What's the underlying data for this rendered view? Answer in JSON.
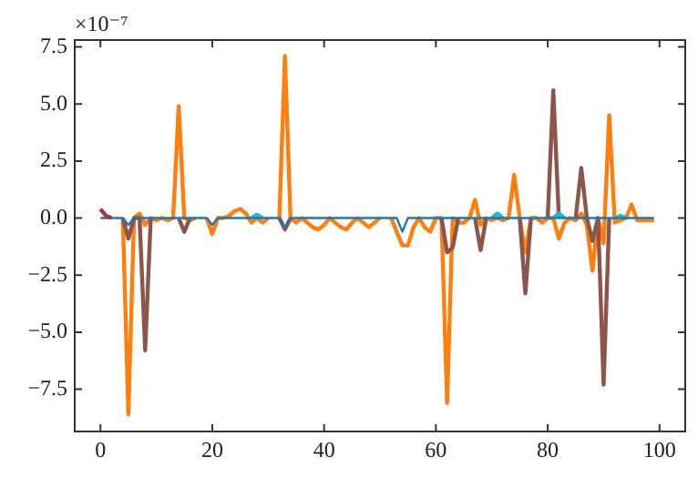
{
  "chart_data": {
    "type": "line",
    "annotations": [
      "×10⁻⁷"
    ],
    "x": [
      0,
      1,
      2,
      3,
      4,
      5,
      6,
      7,
      8,
      9,
      10,
      11,
      12,
      13,
      14,
      15,
      16,
      17,
      18,
      19,
      20,
      21,
      22,
      23,
      24,
      25,
      26,
      27,
      28,
      29,
      30,
      31,
      32,
      33,
      34,
      35,
      36,
      37,
      38,
      39,
      40,
      41,
      42,
      43,
      44,
      45,
      46,
      47,
      48,
      49,
      50,
      51,
      52,
      53,
      54,
      55,
      56,
      57,
      58,
      59,
      60,
      61,
      62,
      63,
      64,
      65,
      66,
      67,
      68,
      69,
      70,
      71,
      72,
      73,
      74,
      75,
      76,
      77,
      78,
      79,
      80,
      81,
      82,
      83,
      84,
      85,
      86,
      87,
      88,
      89,
      90,
      91,
      92,
      93,
      94,
      95,
      96,
      97,
      98,
      99
    ],
    "series": [
      {
        "color": "#1f77b4",
        "values": [
          0,
          0,
          0,
          0,
          0,
          -0.3,
          0,
          0,
          0,
          0,
          0,
          0,
          0,
          0,
          0,
          0,
          0,
          0,
          0,
          0,
          -0.3,
          0,
          0,
          0,
          0,
          0,
          0,
          0,
          0,
          0,
          0,
          0,
          0,
          -0.4,
          0,
          0,
          0,
          0,
          0,
          0,
          0,
          0,
          0,
          0,
          0,
          0,
          0,
          0,
          0,
          0,
          0,
          0,
          0,
          0,
          -0.6,
          0,
          0,
          0,
          0,
          0,
          0,
          0,
          0,
          0,
          0,
          0,
          0,
          0,
          0,
          0,
          0,
          0,
          0,
          0,
          0,
          0,
          0,
          0,
          0,
          0,
          0,
          0,
          0,
          0,
          0,
          0,
          0,
          0,
          0,
          0,
          0,
          0,
          0,
          0,
          0,
          0,
          0,
          0,
          0,
          0
        ]
      },
      {
        "color": "#17becf",
        "values": [
          null,
          null,
          null,
          null,
          null,
          null,
          null,
          null,
          null,
          null,
          null,
          null,
          null,
          null,
          null,
          null,
          null,
          null,
          null,
          null,
          null,
          null,
          null,
          null,
          null,
          null,
          null,
          0,
          0.15,
          0,
          null,
          null,
          null,
          null,
          null,
          null,
          null,
          null,
          null,
          null,
          null,
          null,
          null,
          null,
          null,
          null,
          null,
          null,
          null,
          null,
          null,
          null,
          null,
          null,
          null,
          null,
          null,
          null,
          null,
          null,
          null,
          null,
          null,
          null,
          null,
          null,
          null,
          null,
          null,
          null,
          0,
          0.2,
          0,
          null,
          null,
          null,
          null,
          null,
          null,
          null,
          null,
          0,
          0.2,
          0,
          null,
          null,
          null,
          null,
          null,
          null,
          null,
          null,
          0,
          0.1,
          0,
          null,
          null,
          null,
          null,
          null
        ]
      },
      {
        "color": "#b03050",
        "values": [
          0.4,
          0.1,
          0,
          null,
          null,
          null,
          null,
          null,
          null,
          null,
          null,
          null,
          null,
          null,
          null,
          null,
          null,
          null,
          null,
          null,
          null,
          null,
          null,
          null,
          null,
          null,
          null,
          null,
          null,
          null,
          null,
          null,
          null,
          null,
          null,
          null,
          null,
          null,
          null,
          null,
          null,
          null,
          null,
          null,
          null,
          null,
          null,
          null,
          null,
          null,
          null,
          null,
          null,
          null,
          null,
          null,
          null,
          null,
          null,
          null,
          null,
          null,
          null,
          null,
          null,
          null,
          null,
          null,
          null,
          null,
          null,
          null,
          null,
          null,
          null,
          null,
          null,
          null,
          null,
          null,
          null,
          null,
          null,
          null,
          null,
          null,
          null,
          null,
          null,
          null,
          null,
          null,
          null,
          null,
          null,
          null,
          null,
          null,
          null,
          null
        ]
      },
      {
        "color": "#8c564b",
        "values": [
          null,
          null,
          null,
          null,
          0,
          -0.9,
          0,
          0,
          -5.8,
          0,
          null,
          null,
          null,
          null,
          0,
          -0.6,
          0,
          null,
          null,
          null,
          null,
          null,
          null,
          null,
          null,
          null,
          null,
          null,
          null,
          null,
          null,
          null,
          0,
          -0.5,
          0,
          null,
          null,
          null,
          null,
          null,
          null,
          null,
          null,
          null,
          null,
          null,
          null,
          null,
          null,
          null,
          null,
          null,
          null,
          null,
          null,
          null,
          null,
          null,
          null,
          null,
          null,
          0,
          -1.5,
          -1.3,
          0,
          null,
          null,
          0,
          -1.4,
          0,
          null,
          null,
          null,
          null,
          null,
          0,
          -3.3,
          0,
          null,
          null,
          0,
          5.6,
          0,
          null,
          null,
          0,
          2.2,
          0,
          -1.0,
          0,
          -7.3,
          0,
          null,
          null,
          null,
          null,
          null,
          null,
          null,
          null
        ]
      },
      {
        "color": "#ff7f0e",
        "values": [
          null,
          null,
          null,
          null,
          0,
          -8.6,
          0,
          0.2,
          -0.3,
          0,
          -0.1,
          0,
          -0.1,
          0,
          4.9,
          0,
          -0.1,
          0,
          null,
          0,
          -0.7,
          0,
          0,
          0.1,
          0.3,
          0.4,
          0.2,
          -0.2,
          0,
          -0.2,
          0,
          null,
          0,
          7.1,
          0,
          -0.2,
          0,
          -0.2,
          -0.4,
          -0.5,
          -0.3,
          0,
          -0.2,
          -0.4,
          -0.5,
          -0.2,
          0,
          -0.2,
          -0.4,
          -0.2,
          0,
          null,
          0,
          -0.6,
          -1.2,
          -1.2,
          -0.4,
          0,
          -0.4,
          -0.6,
          0,
          0,
          -8.1,
          0,
          -0.2,
          -0.2,
          0,
          0.8,
          -0.3,
          0,
          -0.1,
          0,
          -0.1,
          0,
          1.9,
          0,
          -1.5,
          0,
          0,
          -0.2,
          0,
          0,
          -0.9,
          -0.2,
          0,
          -0.1,
          0.2,
          -0.3,
          -2.3,
          0,
          -1.1,
          4.5,
          -0.2,
          -0.1,
          0,
          0.6,
          -0.1,
          -0.1,
          -0.1,
          -0.1
        ]
      }
    ],
    "xlim": [
      -4.6,
      104.6
    ],
    "ylim": [
      -9.35,
      7.8
    ],
    "xticks": [
      0,
      20,
      40,
      60,
      80,
      100
    ],
    "yticks": [
      {
        "value": -7.5,
        "label": "−7.5"
      },
      {
        "value": -5,
        "label": "−5.0"
      },
      {
        "value": -2.5,
        "label": "−2.5"
      },
      {
        "value": 0,
        "label": "0.0"
      },
      {
        "value": 2.5,
        "label": "2.5"
      },
      {
        "value": 5,
        "label": "5.0"
      },
      {
        "value": 7.5,
        "label": "7.5"
      }
    ],
    "grid": false,
    "legend": false,
    "marker": "none",
    "line_style": "solid"
  }
}
